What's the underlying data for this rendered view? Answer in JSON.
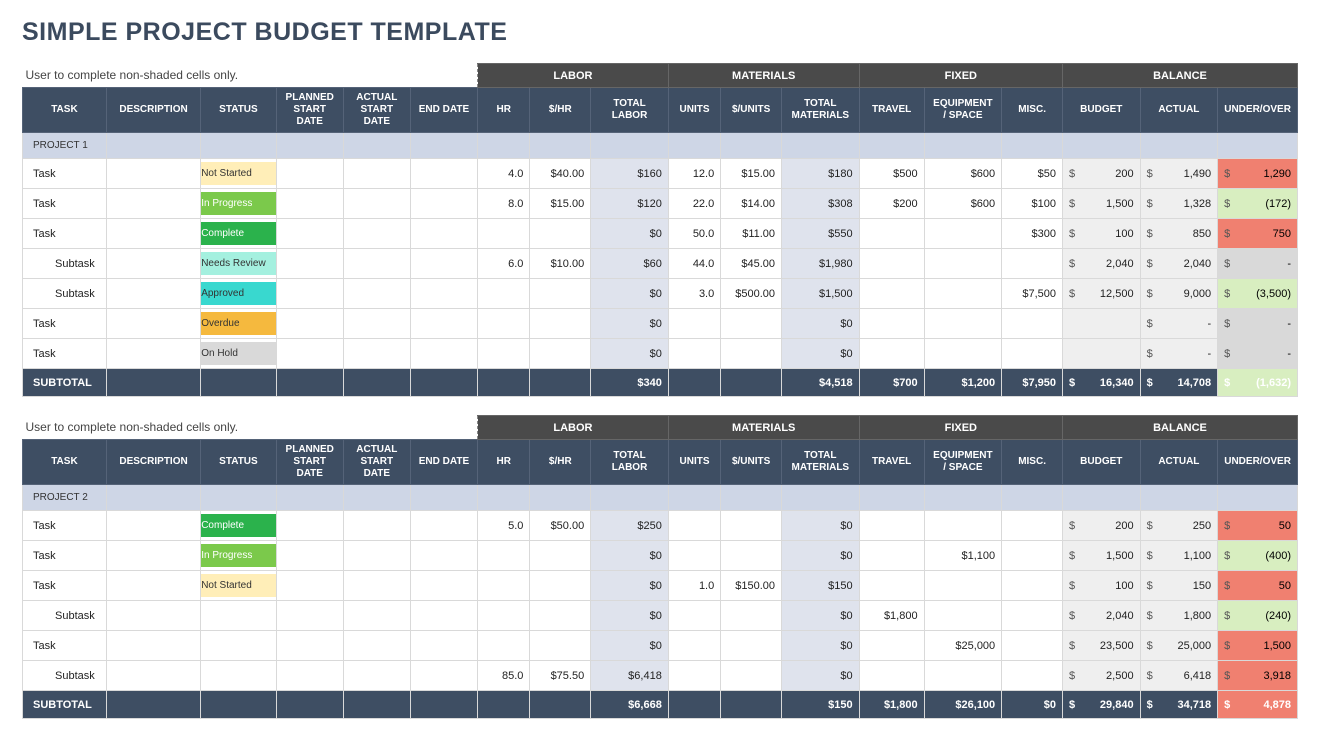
{
  "title": "SIMPLE PROJECT BUDGET TEMPLATE",
  "note": "User to complete non-shaded cells only.",
  "groups": [
    "LABOR",
    "MATERIALS",
    "FIXED",
    "BALANCE"
  ],
  "columns": [
    "TASK",
    "DESCRIPTION",
    "STATUS",
    "PLANNED START DATE",
    "ACTUAL START DATE",
    "END DATE",
    "HR",
    "$/HR",
    "TOTAL LABOR",
    "UNITS",
    "$/UNITS",
    "TOTAL MATERIALS",
    "TRAVEL",
    "EQUIPMENT / SPACE",
    "MISC.",
    "BUDGET",
    "ACTUAL",
    "UNDER/OVER"
  ],
  "status_colors": {
    "Not Started": "#ffeeb8",
    "In Progress": "#7bc94b",
    "Complete": "#2bb24c",
    "Needs Review": "#a4f0df",
    "Approved": "#39d8cf",
    "Overdue": "#f5b93e",
    "On Hold": "#d9d9d9"
  },
  "colors": {
    "title": "#3b4a5e",
    "group_bg": "#4a4a4a",
    "col_bg": "#3e4e63",
    "project_bg": "#ced6e6",
    "calc_bg": "#dfe3ed",
    "balance_bg": "#efefef",
    "uo_red": "#f08070",
    "uo_green": "#d8eec0",
    "uo_grey": "#d9d9d9"
  },
  "subtotal_label": "SUBTOTAL",
  "projects": [
    {
      "name": "PROJECT 1",
      "rows": [
        {
          "task": "Task",
          "indent": 0,
          "status": "Not Started",
          "hr": "4.0",
          "rate": "$40.00",
          "tlabor": "$160",
          "units": "12.0",
          "urate": "$15.00",
          "tmat": "$180",
          "travel": "$500",
          "equip": "$600",
          "misc": "$50",
          "budget": "200",
          "actual": "1,490",
          "uo": "1,290",
          "uo_class": "uo-red"
        },
        {
          "task": "Task",
          "indent": 0,
          "status": "In Progress",
          "hr": "8.0",
          "rate": "$15.00",
          "tlabor": "$120",
          "units": "22.0",
          "urate": "$14.00",
          "tmat": "$308",
          "travel": "$200",
          "equip": "$600",
          "misc": "$100",
          "budget": "1,500",
          "actual": "1,328",
          "uo": "(172)",
          "uo_class": "uo-green"
        },
        {
          "task": "Task",
          "indent": 0,
          "status": "Complete",
          "hr": "",
          "rate": "",
          "tlabor": "$0",
          "units": "50.0",
          "urate": "$11.00",
          "tmat": "$550",
          "travel": "",
          "equip": "",
          "misc": "$300",
          "budget": "100",
          "actual": "850",
          "uo": "750",
          "uo_class": "uo-red"
        },
        {
          "task": "Subtask",
          "indent": 1,
          "status": "Needs Review",
          "hr": "6.0",
          "rate": "$10.00",
          "tlabor": "$60",
          "units": "44.0",
          "urate": "$45.00",
          "tmat": "$1,980",
          "travel": "",
          "equip": "",
          "misc": "",
          "budget": "2,040",
          "actual": "2,040",
          "uo": "-",
          "uo_class": "uo-grey"
        },
        {
          "task": "Subtask",
          "indent": 1,
          "status": "Approved",
          "hr": "",
          "rate": "",
          "tlabor": "$0",
          "units": "3.0",
          "urate": "$500.00",
          "tmat": "$1,500",
          "travel": "",
          "equip": "",
          "misc": "$7,500",
          "budget": "12,500",
          "actual": "9,000",
          "uo": "(3,500)",
          "uo_class": "uo-green"
        },
        {
          "task": "Task",
          "indent": 0,
          "status": "Overdue",
          "hr": "",
          "rate": "",
          "tlabor": "$0",
          "units": "",
          "urate": "",
          "tmat": "$0",
          "travel": "",
          "equip": "",
          "misc": "",
          "budget": "",
          "actual": "-",
          "uo": "-",
          "uo_class": "uo-grey"
        },
        {
          "task": "Task",
          "indent": 0,
          "status": "On Hold",
          "hr": "",
          "rate": "",
          "tlabor": "$0",
          "units": "",
          "urate": "",
          "tmat": "$0",
          "travel": "",
          "equip": "",
          "misc": "",
          "budget": "",
          "actual": "-",
          "uo": "-",
          "uo_class": "uo-grey"
        }
      ],
      "subtotal": {
        "tlabor": "$340",
        "tmat": "$4,518",
        "travel": "$700",
        "equip": "$1,200",
        "misc": "$7,950",
        "budget": "16,340",
        "actual": "14,708",
        "uo": "(1,632)",
        "uo_class": "uo-green"
      }
    },
    {
      "name": "PROJECT 2",
      "rows": [
        {
          "task": "Task",
          "indent": 0,
          "status": "Complete",
          "hr": "5.0",
          "rate": "$50.00",
          "tlabor": "$250",
          "units": "",
          "urate": "",
          "tmat": "$0",
          "travel": "",
          "equip": "",
          "misc": "",
          "budget": "200",
          "actual": "250",
          "uo": "50",
          "uo_class": "uo-red"
        },
        {
          "task": "Task",
          "indent": 0,
          "status": "In Progress",
          "hr": "",
          "rate": "",
          "tlabor": "$0",
          "units": "",
          "urate": "",
          "tmat": "$0",
          "travel": "",
          "equip": "$1,100",
          "misc": "",
          "budget": "1,500",
          "actual": "1,100",
          "uo": "(400)",
          "uo_class": "uo-green"
        },
        {
          "task": "Task",
          "indent": 0,
          "status": "Not Started",
          "hr": "",
          "rate": "",
          "tlabor": "$0",
          "units": "1.0",
          "urate": "$150.00",
          "tmat": "$150",
          "travel": "",
          "equip": "",
          "misc": "",
          "budget": "100",
          "actual": "150",
          "uo": "50",
          "uo_class": "uo-red"
        },
        {
          "task": "Subtask",
          "indent": 1,
          "status": "",
          "hr": "",
          "rate": "",
          "tlabor": "$0",
          "units": "",
          "urate": "",
          "tmat": "$0",
          "travel": "$1,800",
          "equip": "",
          "misc": "",
          "budget": "2,040",
          "actual": "1,800",
          "uo": "(240)",
          "uo_class": "uo-green"
        },
        {
          "task": "Task",
          "indent": 0,
          "status": "",
          "hr": "",
          "rate": "",
          "tlabor": "$0",
          "units": "",
          "urate": "",
          "tmat": "$0",
          "travel": "",
          "equip": "$25,000",
          "misc": "",
          "budget": "23,500",
          "actual": "25,000",
          "uo": "1,500",
          "uo_class": "uo-red"
        },
        {
          "task": "Subtask",
          "indent": 1,
          "status": "",
          "hr": "85.0",
          "rate": "$75.50",
          "tlabor": "$6,418",
          "units": "",
          "urate": "",
          "tmat": "$0",
          "travel": "",
          "equip": "",
          "misc": "",
          "budget": "2,500",
          "actual": "6,418",
          "uo": "3,918",
          "uo_class": "uo-red"
        }
      ],
      "subtotal": {
        "tlabor": "$6,668",
        "tmat": "$150",
        "travel": "$1,800",
        "equip": "$26,100",
        "misc": "$0",
        "budget": "29,840",
        "actual": "34,718",
        "uo": "4,878",
        "uo_class": "uo-red"
      }
    }
  ]
}
